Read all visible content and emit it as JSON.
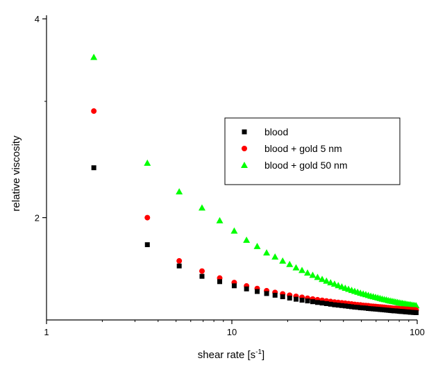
{
  "chart_data": {
    "type": "scatter",
    "xlabel": "shear rate [s",
    "xlabel_superscript": "-1",
    "xlabel_suffix": "]",
    "ylabel": "relative viscosity",
    "x_scale": "log",
    "y_scale": "log",
    "xlim": [
      1,
      100
    ],
    "ylim": [
      1.4,
      4.05
    ],
    "x_ticks": [
      {
        "value": 1,
        "label": "1"
      },
      {
        "value": 10,
        "label": "10"
      },
      {
        "value": 100,
        "label": "100"
      }
    ],
    "y_ticks": [
      {
        "value": 2,
        "label": "2"
      },
      {
        "value": 4,
        "label": "4"
      }
    ],
    "legend_position": "center-right",
    "grid": false,
    "x": [
      1.8,
      3.5,
      5.2,
      6.9,
      8.6,
      10.3,
      12.0,
      13.7,
      15.4,
      17.1,
      18.8,
      20.5,
      22.2,
      23.9,
      25.6,
      27.3,
      29.0,
      30.7,
      32.4,
      34.1,
      35.8,
      37.5,
      39.2,
      40.9,
      42.6,
      44.3,
      46.0,
      47.7,
      49.4,
      51.1,
      52.8,
      54.5,
      56.2,
      57.9,
      59.6,
      61.3,
      63.0,
      64.7,
      66.4,
      68.1,
      69.8,
      71.5,
      73.2,
      74.9,
      76.6,
      78.3,
      80.0,
      81.7,
      83.4,
      85.1,
      86.8,
      88.5,
      90.2,
      91.9,
      93.6,
      95.3,
      97.0,
      98.7
    ],
    "series": [
      {
        "name": "blood",
        "marker": "square",
        "color": "#000000",
        "values": [
          2.38,
          1.82,
          1.69,
          1.63,
          1.6,
          1.577,
          1.56,
          1.546,
          1.535,
          1.526,
          1.518,
          1.511,
          1.505,
          1.5,
          1.496,
          1.492,
          1.488,
          1.485,
          1.482,
          1.479,
          1.476,
          1.474,
          1.472,
          1.47,
          1.468,
          1.466,
          1.464,
          1.463,
          1.461,
          1.46,
          1.459,
          1.457,
          1.456,
          1.455,
          1.454,
          1.453,
          1.452,
          1.451,
          1.45,
          1.449,
          1.448,
          1.447,
          1.446,
          1.445,
          1.445,
          1.444,
          1.443,
          1.442,
          1.442,
          1.441,
          1.44,
          1.44,
          1.439,
          1.438,
          1.438,
          1.437,
          1.437,
          1.436
        ]
      },
      {
        "name": "blood + gold 5 nm",
        "marker": "circle",
        "color": "#ff0000",
        "values": [
          2.9,
          2.0,
          1.72,
          1.66,
          1.62,
          1.595,
          1.576,
          1.562,
          1.55,
          1.541,
          1.533,
          1.526,
          1.52,
          1.515,
          1.51,
          1.506,
          1.502,
          1.499,
          1.496,
          1.493,
          1.49,
          1.488,
          1.486,
          1.484,
          1.482,
          1.48,
          1.478,
          1.476,
          1.475,
          1.473,
          1.472,
          1.471,
          1.469,
          1.468,
          1.467,
          1.466,
          1.465,
          1.464,
          1.463,
          1.462,
          1.461,
          1.46,
          1.459,
          1.458,
          1.458,
          1.457,
          1.456,
          1.455,
          1.455,
          1.454,
          1.453,
          1.453,
          1.452,
          1.451,
          1.451,
          1.45,
          1.45,
          1.449
        ]
      },
      {
        "name": "blood + gold 50 nm",
        "marker": "triangle",
        "color": "#00ff00",
        "values": [
          3.5,
          2.42,
          2.19,
          2.07,
          1.98,
          1.91,
          1.85,
          1.81,
          1.77,
          1.745,
          1.72,
          1.7,
          1.68,
          1.665,
          1.65,
          1.637,
          1.625,
          1.614,
          1.604,
          1.595,
          1.587,
          1.579,
          1.572,
          1.565,
          1.559,
          1.553,
          1.548,
          1.543,
          1.538,
          1.534,
          1.53,
          1.526,
          1.522,
          1.519,
          1.516,
          1.513,
          1.51,
          1.507,
          1.504,
          1.502,
          1.499,
          1.497,
          1.495,
          1.493,
          1.491,
          1.489,
          1.487,
          1.485,
          1.484,
          1.482,
          1.481,
          1.479,
          1.478,
          1.477,
          1.475,
          1.474,
          1.473,
          1.472
        ]
      }
    ]
  }
}
